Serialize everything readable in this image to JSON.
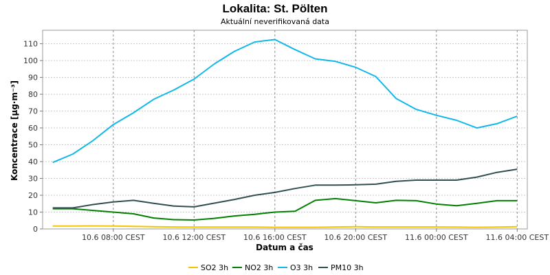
{
  "chart_data": {
    "type": "line",
    "title": "Lokalita: St. Pölten",
    "subtitle": "Aktuální neverifikovaná data",
    "xlabel": "Datum a čas",
    "ylabel": "Koncentrace [µg·m⁻³]",
    "ylim": [
      0,
      118
    ],
    "xlim": [
      "2024-06-10T04:30",
      "2024-06-11T04:30"
    ],
    "yticks": [
      0,
      10,
      20,
      30,
      40,
      50,
      60,
      70,
      80,
      90,
      100,
      110
    ],
    "xticks": [
      {
        "t": "2024-06-10T08:00",
        "label": "10.6 08:00 CEST"
      },
      {
        "t": "2024-06-10T12:00",
        "label": "10.6 12:00 CEST"
      },
      {
        "t": "2024-06-10T16:00",
        "label": "10.6 16:00 CEST"
      },
      {
        "t": "2024-06-10T20:00",
        "label": "10.6 20:00 CEST"
      },
      {
        "t": "2024-06-11T00:00",
        "label": "11.6 00:00 CEST"
      },
      {
        "t": "2024-06-11T04:00",
        "label": "11.6 04:00 CEST"
      }
    ],
    "grid": true,
    "legend_position": "bottom",
    "x": [
      "2024-06-10T05:00",
      "2024-06-10T06:00",
      "2024-06-10T07:00",
      "2024-06-10T08:00",
      "2024-06-10T09:00",
      "2024-06-10T10:00",
      "2024-06-10T11:00",
      "2024-06-10T12:00",
      "2024-06-10T13:00",
      "2024-06-10T14:00",
      "2024-06-10T15:00",
      "2024-06-10T16:00",
      "2024-06-10T17:00",
      "2024-06-10T18:00",
      "2024-06-10T19:00",
      "2024-06-10T20:00",
      "2024-06-10T21:00",
      "2024-06-10T22:00",
      "2024-06-10T23:00",
      "2024-06-11T00:00",
      "2024-06-11T01:00",
      "2024-06-11T02:00",
      "2024-06-11T03:00",
      "2024-06-11T04:00"
    ],
    "series": [
      {
        "name": "SO2 3h",
        "color": "#f5c400",
        "values": [
          1.7,
          1.7,
          1.8,
          1.7,
          1.5,
          1.3,
          1.2,
          1.1,
          1.1,
          1.1,
          1.1,
          1.0,
          1.0,
          1.0,
          1.2,
          1.3,
          1.2,
          1.2,
          1.2,
          1.2,
          1.1,
          1.0,
          1.1,
          1.3
        ]
      },
      {
        "name": "NO2 3h",
        "color": "#008000",
        "values": [
          12.0,
          12.0,
          11.0,
          10.0,
          9.0,
          6.5,
          5.5,
          5.3,
          6.3,
          7.7,
          8.7,
          10.0,
          10.5,
          17.0,
          18.0,
          16.8,
          15.5,
          17.0,
          16.8,
          14.8,
          13.8,
          15.2,
          16.8,
          16.8
        ]
      },
      {
        "name": "O3 3h",
        "color": "#10b8ea",
        "values": [
          39.5,
          44.5,
          52.5,
          62.0,
          69.0,
          77.0,
          82.5,
          89.0,
          98.0,
          105.5,
          111.0,
          112.5,
          106.5,
          101.0,
          99.5,
          96.0,
          90.5,
          77.5,
          71.0,
          67.5,
          64.5,
          60.0,
          62.5,
          67.0
        ]
      },
      {
        "name": "PM10 3h",
        "color": "#2f4f4f",
        "values": [
          12.5,
          12.5,
          14.5,
          16.0,
          17.0,
          15.2,
          13.6,
          13.1,
          15.3,
          17.5,
          20.0,
          21.7,
          24.0,
          26.0,
          26.0,
          26.2,
          26.6,
          28.3,
          29.0,
          29.0,
          29.0,
          30.8,
          33.6,
          35.5
        ]
      }
    ]
  }
}
